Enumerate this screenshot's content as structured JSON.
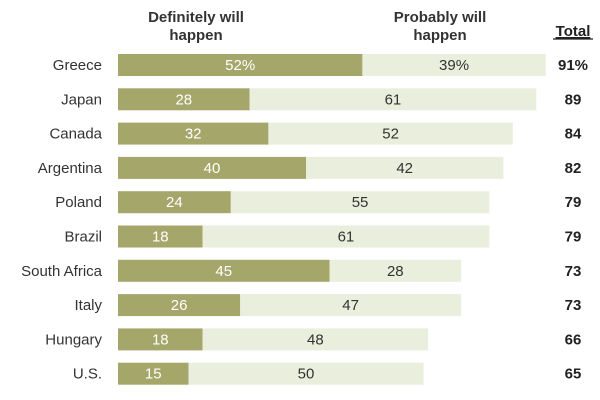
{
  "chart_data": {
    "type": "bar",
    "stacked": true,
    "orientation": "horizontal",
    "categories": [
      "Greece",
      "Japan",
      "Canada",
      "Argentina",
      "Poland",
      "Brazil",
      "South Africa",
      "Italy",
      "Hungary",
      "U.S."
    ],
    "series": [
      {
        "name": "Definitely will happen",
        "header_lines": [
          "Definitely will",
          "happen"
        ],
        "color": "#a5a66a",
        "values": [
          52,
          28,
          32,
          40,
          24,
          18,
          45,
          26,
          18,
          15
        ],
        "labels": [
          "52%",
          "28",
          "32",
          "40",
          "24",
          "18",
          "45",
          "26",
          "18",
          "15"
        ]
      },
      {
        "name": "Probably will happen",
        "header_lines": [
          "Probably will",
          "happen"
        ],
        "color": "#eaeedc",
        "values": [
          39,
          61,
          52,
          42,
          55,
          61,
          28,
          47,
          48,
          50
        ],
        "labels": [
          "39%",
          "61",
          "52",
          "42",
          "55",
          "61",
          "28",
          "47",
          "48",
          "50"
        ]
      }
    ],
    "total_header": "Total",
    "totals": [
      "91%",
      "89",
      "84",
      "82",
      "79",
      "79",
      "73",
      "73",
      "66",
      "65"
    ]
  }
}
